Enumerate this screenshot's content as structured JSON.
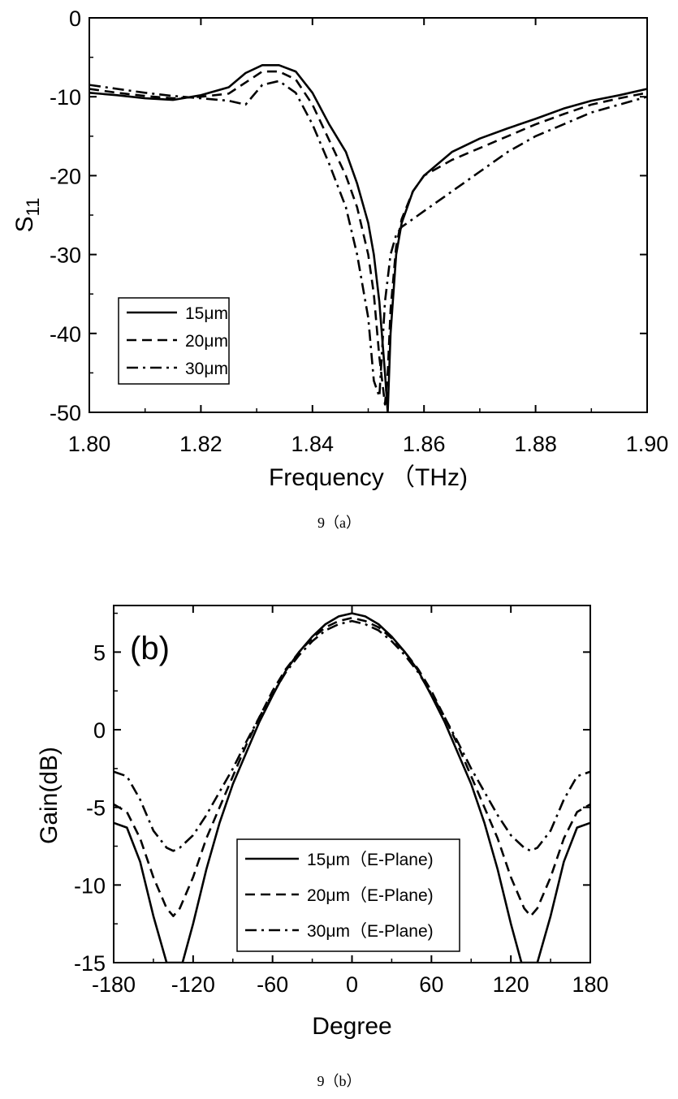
{
  "chart_data": [
    {
      "type": "line",
      "panel": "a",
      "caption": "9（a）",
      "xlabel": "Frequency （THz)",
      "ylabel": "S11",
      "xlim": [
        1.8,
        1.9
      ],
      "ylim": [
        -50,
        0
      ],
      "x_ticks": [
        "1.80",
        "1.82",
        "1.84",
        "1.86",
        "1.88",
        "1.90"
      ],
      "y_ticks": [
        "0",
        "-10",
        "-20",
        "-30",
        "-40",
        "-50"
      ],
      "grid": false,
      "legend_position": "bottom-left",
      "series": [
        {
          "name": "15μm",
          "dash": "solid",
          "x": [
            1.8,
            1.805,
            1.81,
            1.815,
            1.82,
            1.825,
            1.828,
            1.831,
            1.834,
            1.837,
            1.84,
            1.843,
            1.846,
            1.848,
            1.85,
            1.851,
            1.852,
            1.853,
            1.8535,
            1.854,
            1.855,
            1.856,
            1.858,
            1.86,
            1.865,
            1.87,
            1.875,
            1.88,
            1.885,
            1.89,
            1.895,
            1.9
          ],
          "y": [
            -9.5,
            -9.8,
            -10.2,
            -10.4,
            -9.8,
            -8.8,
            -7.0,
            -6.0,
            -6.0,
            -6.8,
            -9.5,
            -13.5,
            -17.0,
            -21.0,
            -26.0,
            -30.0,
            -36.0,
            -45.0,
            -50.0,
            -40.0,
            -30.0,
            -26.0,
            -22.0,
            -20.0,
            -17.0,
            -15.3,
            -14.0,
            -12.8,
            -11.5,
            -10.5,
            -9.8,
            -9.0
          ]
        },
        {
          "name": "20μm",
          "dash": "dashed",
          "x": [
            1.8,
            1.805,
            1.81,
            1.815,
            1.82,
            1.825,
            1.828,
            1.831,
            1.834,
            1.837,
            1.84,
            1.843,
            1.846,
            1.848,
            1.85,
            1.851,
            1.852,
            1.853,
            1.8535,
            1.854,
            1.855,
            1.856,
            1.858,
            1.86,
            1.865,
            1.87,
            1.875,
            1.88,
            1.885,
            1.89,
            1.895,
            1.9
          ],
          "y": [
            -9.0,
            -9.5,
            -9.9,
            -10.2,
            -10.0,
            -9.6,
            -8.2,
            -6.8,
            -6.8,
            -7.8,
            -11.0,
            -15.5,
            -20.0,
            -24.0,
            -30.0,
            -35.0,
            -43.0,
            -49.0,
            -45.0,
            -37.0,
            -29.0,
            -25.5,
            -22.0,
            -20.0,
            -18.0,
            -16.5,
            -15.0,
            -13.5,
            -12.2,
            -11.0,
            -10.2,
            -9.5
          ]
        },
        {
          "name": "30μm",
          "dash": "dashdot",
          "x": [
            1.8,
            1.805,
            1.81,
            1.815,
            1.82,
            1.825,
            1.828,
            1.831,
            1.834,
            1.837,
            1.84,
            1.843,
            1.846,
            1.848,
            1.85,
            1.851,
            1.852,
            1.853,
            1.854,
            1.855,
            1.856,
            1.858,
            1.86,
            1.865,
            1.87,
            1.875,
            1.88,
            1.885,
            1.89,
            1.895,
            1.9
          ],
          "y": [
            -8.5,
            -9.0,
            -9.5,
            -9.9,
            -10.2,
            -10.5,
            -11.0,
            -8.5,
            -8.0,
            -9.5,
            -13.5,
            -18.5,
            -24.0,
            -30.0,
            -38.0,
            -46.0,
            -48.0,
            -36.0,
            -30.0,
            -27.5,
            -26.5,
            -25.5,
            -24.5,
            -22.0,
            -19.5,
            -17.0,
            -15.0,
            -13.5,
            -12.0,
            -11.0,
            -10.0
          ]
        }
      ]
    },
    {
      "type": "line",
      "panel": "b",
      "panel_label": "(b)",
      "caption": "9（b）",
      "xlabel": "Degree",
      "ylabel": "Gain(dB)",
      "xlim": [
        -180,
        180
      ],
      "ylim": [
        -15,
        8
      ],
      "x_ticks": [
        "-180",
        "-120",
        "-60",
        "0",
        "60",
        "120",
        "180"
      ],
      "y_ticks": [
        "5",
        "0",
        "-5",
        "-10",
        "-15"
      ],
      "grid": false,
      "legend_position": "bottom-center",
      "series": [
        {
          "name": "15μm（E-Plane)",
          "dash": "solid",
          "x": [
            -180,
            -170,
            -160,
            -150,
            -140,
            -135,
            -128,
            -120,
            -110,
            -100,
            -90,
            -80,
            -70,
            -60,
            -50,
            -40,
            -30,
            -20,
            -10,
            0,
            10,
            20,
            30,
            40,
            50,
            60,
            70,
            80,
            90,
            100,
            110,
            120,
            128,
            135,
            140,
            150,
            160,
            170,
            180
          ],
          "y": [
            -6.0,
            -6.3,
            -8.5,
            -12.0,
            -15.0,
            -15.0,
            -15.0,
            -12.5,
            -9.0,
            -6.0,
            -3.5,
            -1.5,
            0.5,
            2.2,
            3.8,
            5.0,
            6.0,
            6.8,
            7.3,
            7.5,
            7.3,
            6.8,
            6.0,
            5.0,
            3.8,
            2.2,
            0.5,
            -1.5,
            -3.5,
            -6.0,
            -9.0,
            -12.5,
            -15.0,
            -15.0,
            -15.0,
            -12.0,
            -8.5,
            -6.3,
            -6.0
          ]
        },
        {
          "name": "20μm（E-Plane)",
          "dash": "dashed",
          "x": [
            -180,
            -170,
            -160,
            -150,
            -140,
            -135,
            -130,
            -120,
            -110,
            -100,
            -90,
            -80,
            -70,
            -60,
            -50,
            -40,
            -30,
            -20,
            -10,
            0,
            10,
            20,
            30,
            40,
            50,
            60,
            70,
            80,
            90,
            100,
            110,
            120,
            130,
            135,
            140,
            150,
            160,
            170,
            180
          ],
          "y": [
            -4.8,
            -5.3,
            -7.0,
            -9.5,
            -11.5,
            -12.0,
            -11.5,
            -9.5,
            -7.0,
            -5.0,
            -3.0,
            -1.0,
            0.8,
            2.5,
            3.9,
            5.0,
            5.9,
            6.6,
            7.0,
            7.2,
            7.0,
            6.6,
            5.9,
            5.0,
            3.9,
            2.5,
            0.8,
            -1.0,
            -3.0,
            -5.0,
            -7.0,
            -9.5,
            -11.5,
            -12.0,
            -11.5,
            -9.5,
            -7.0,
            -5.3,
            -4.8
          ]
        },
        {
          "name": "30μm（E-Plane)",
          "dash": "dashdot",
          "x": [
            -180,
            -170,
            -160,
            -150,
            -140,
            -135,
            -130,
            -120,
            -110,
            -100,
            -90,
            -80,
            -70,
            -60,
            -50,
            -40,
            -30,
            -20,
            -10,
            0,
            10,
            20,
            30,
            40,
            50,
            60,
            70,
            80,
            90,
            100,
            110,
            120,
            130,
            135,
            140,
            150,
            160,
            170,
            180
          ],
          "y": [
            -2.7,
            -3.0,
            -4.5,
            -6.5,
            -7.6,
            -7.8,
            -7.6,
            -6.8,
            -5.5,
            -4.0,
            -2.5,
            -0.8,
            0.8,
            2.3,
            3.7,
            4.8,
            5.7,
            6.4,
            6.8,
            7.0,
            6.8,
            6.4,
            5.7,
            4.8,
            3.7,
            2.3,
            0.8,
            -0.8,
            -2.5,
            -4.0,
            -5.5,
            -6.8,
            -7.6,
            -7.8,
            -7.6,
            -6.5,
            -4.5,
            -3.0,
            -2.7
          ]
        }
      ]
    }
  ]
}
